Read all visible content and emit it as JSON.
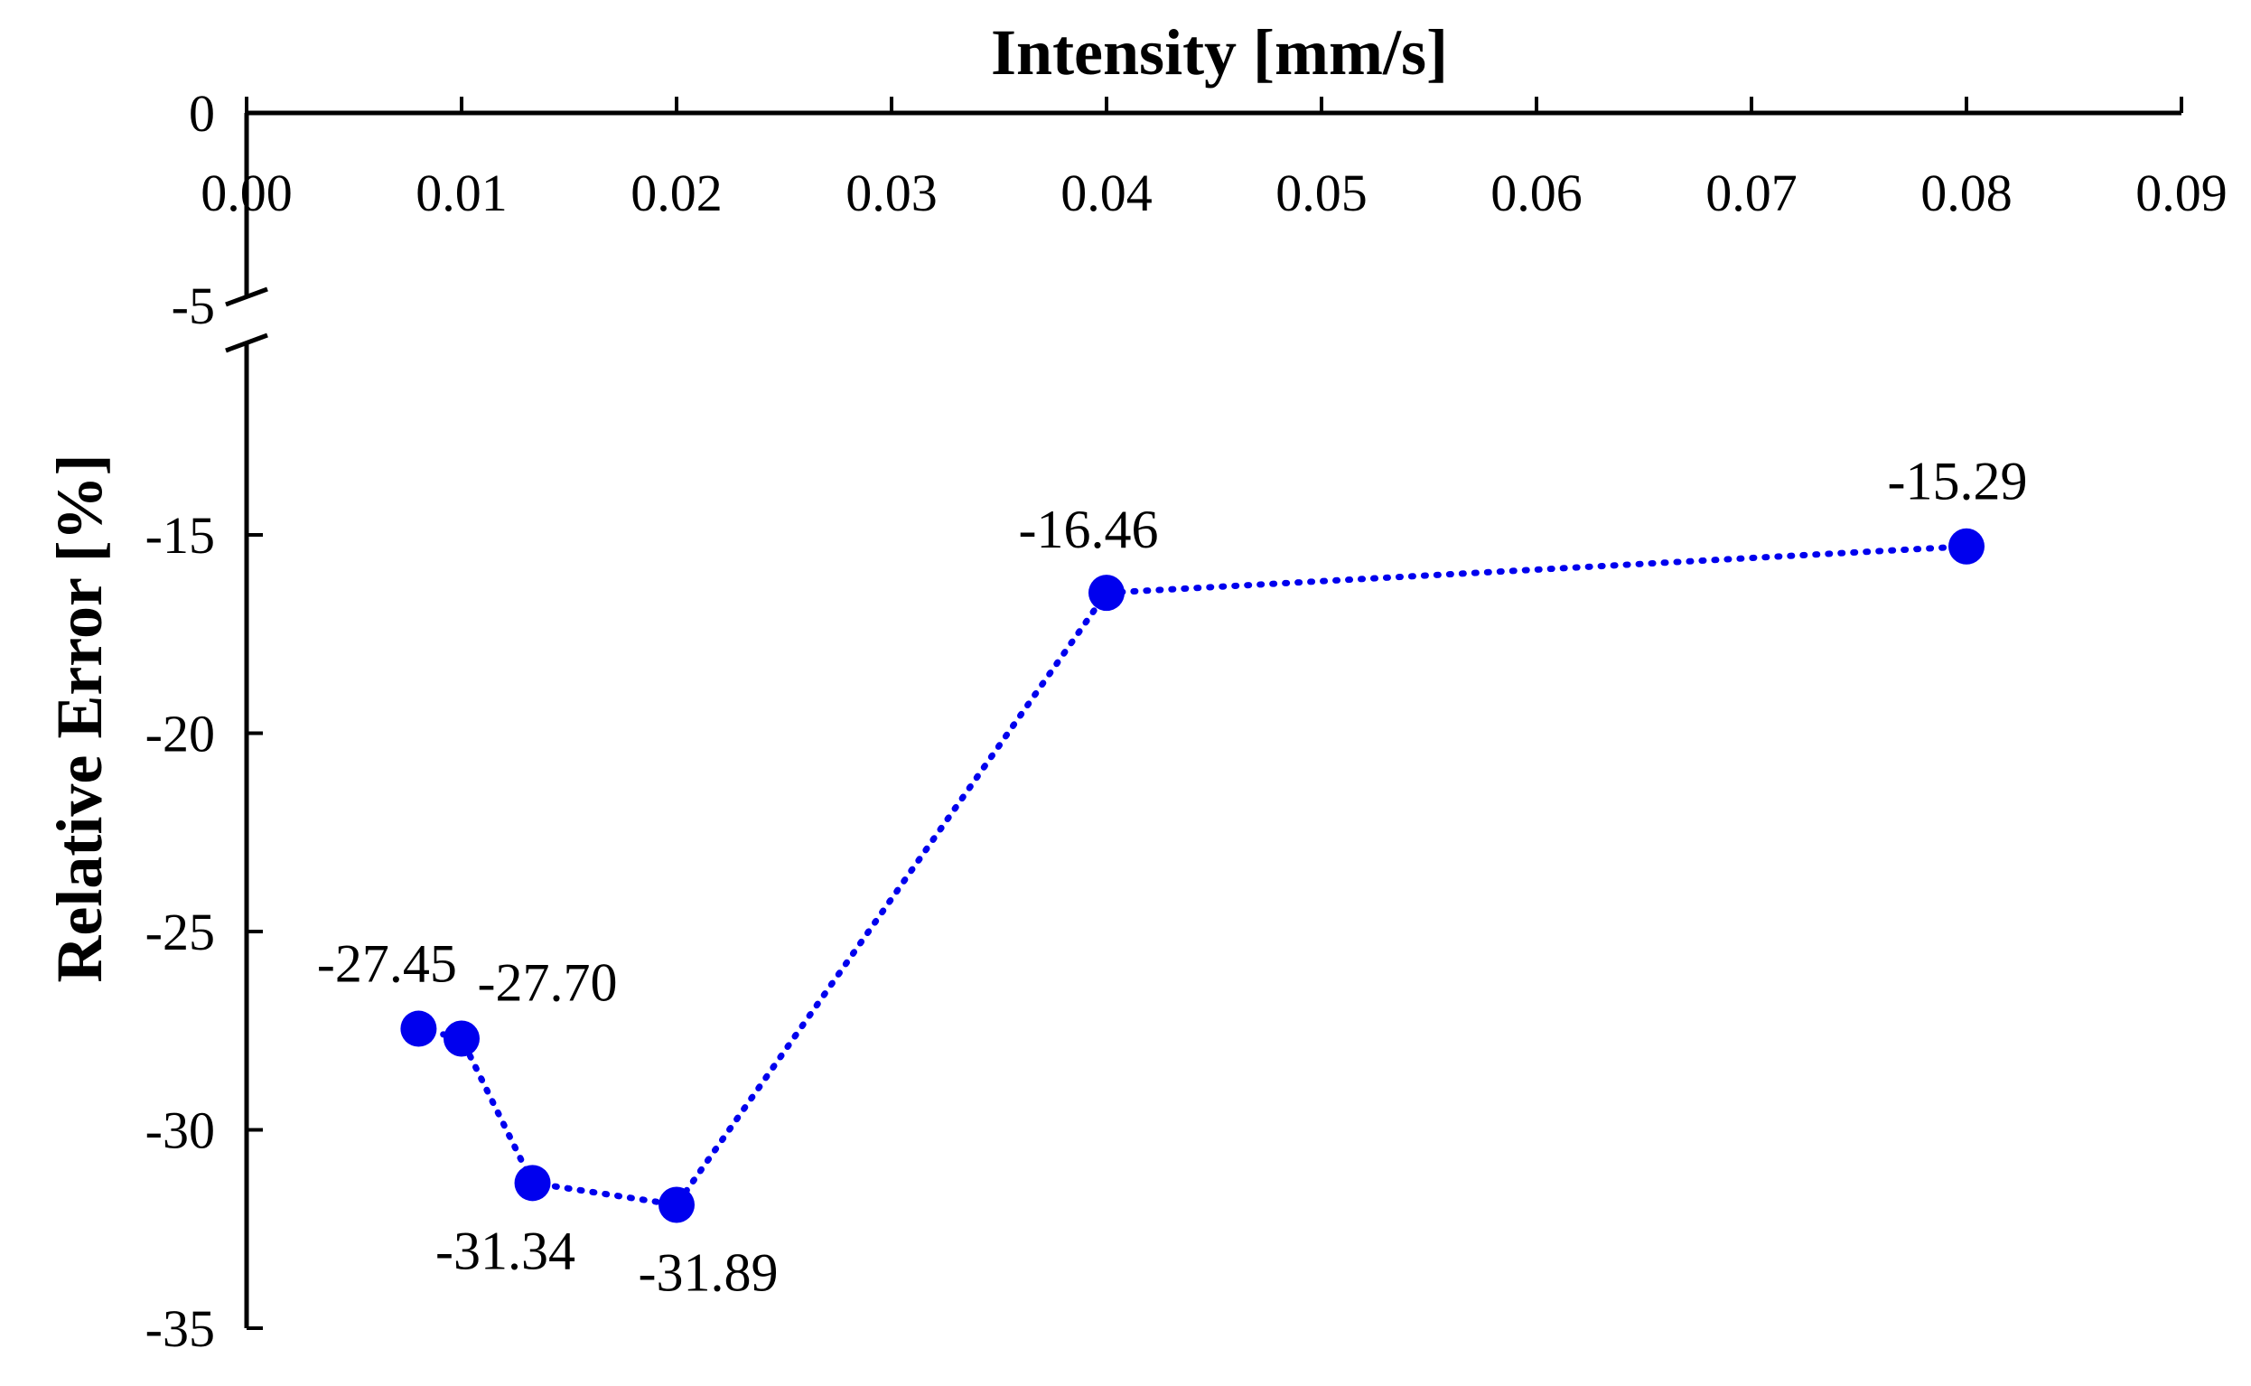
{
  "chart_data": {
    "type": "line",
    "title": "",
    "xlabel": "Intensity [mm/s]",
    "ylabel": "Relative Error [%]",
    "xlim": [
      0,
      0.09
    ],
    "ylim": [
      -35,
      0
    ],
    "y_axis_break": [
      -10,
      -5
    ],
    "x_axis_position": "top",
    "grid": false,
    "x_ticks": [
      0.0,
      0.01,
      0.02,
      0.03,
      0.04,
      0.05,
      0.06,
      0.07,
      0.08,
      0.09
    ],
    "x_tick_labels": [
      "0.00",
      "0.01",
      "0.02",
      "0.03",
      "0.04",
      "0.05",
      "0.06",
      "0.07",
      "0.08",
      "0.09"
    ],
    "y_ticks": [
      0,
      -5,
      -15,
      -20,
      -25,
      -30,
      -35
    ],
    "y_tick_labels": [
      "0",
      "-5",
      "-15",
      "-20",
      "-25",
      "-30",
      "-35"
    ],
    "series": [
      {
        "name": "Relative Error",
        "color": "#0000ee",
        "line_style": "dotted",
        "marker": "circle",
        "x": [
          0.008,
          0.01,
          0.0133,
          0.02,
          0.04,
          0.08
        ],
        "y": [
          -27.45,
          -27.7,
          -31.34,
          -31.89,
          -16.46,
          -15.29
        ],
        "labels": [
          "-27.45",
          "-27.70",
          "-31.34",
          "-31.89",
          "-16.46",
          "-15.29"
        ]
      }
    ]
  }
}
